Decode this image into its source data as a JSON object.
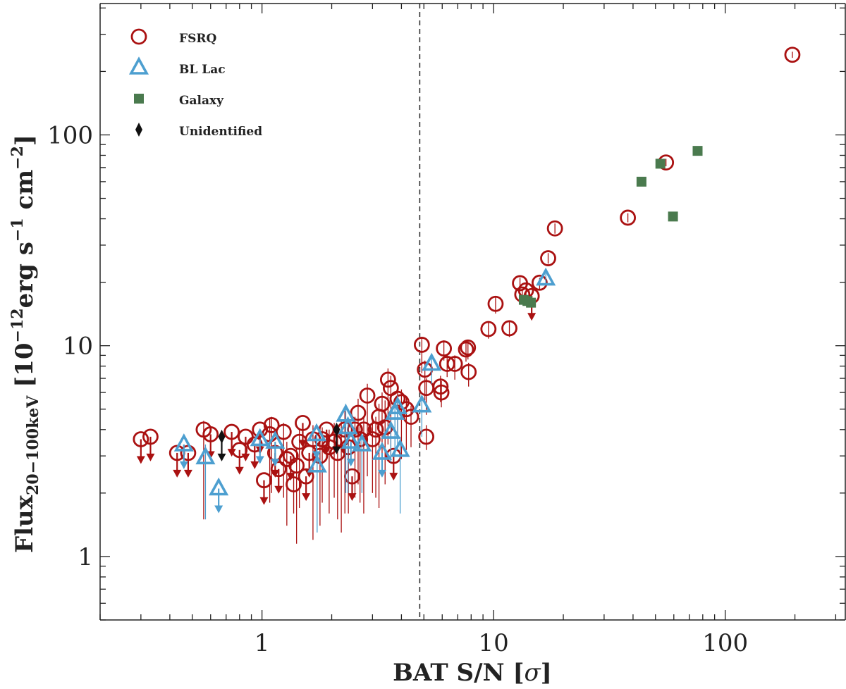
{
  "chart_data": {
    "type": "scatter",
    "xscale": "log",
    "yscale": "log",
    "xlim": [
      0.2,
      330
    ],
    "ylim": [
      0.5,
      420
    ],
    "x_ticks": [
      {
        "value": 1,
        "label": "1"
      },
      {
        "value": 10,
        "label": "10"
      },
      {
        "value": 100,
        "label": "100"
      }
    ],
    "y_ticks": [
      {
        "value": 1,
        "label": "1"
      },
      {
        "value": 10,
        "label": "10"
      },
      {
        "value": 100,
        "label": "100"
      }
    ],
    "xlabel": {
      "main": "BAT S/N [",
      "sym": "σ",
      "close": "]"
    },
    "ylabel": {
      "main": "Flux",
      "sub": "20−100keV",
      "unit_open": " [10",
      "exp1": "−12",
      "unit_mid": "erg s",
      "exp2": "−1",
      "unit_mid2": " cm",
      "exp3": "−2",
      "unit_close": "]"
    },
    "threshold_line": {
      "x": 4.8,
      "style": "dashed"
    },
    "legend_position": "top-left",
    "colors": {
      "fsrq": "#aa1111",
      "bllac": "#4d9fd0",
      "galaxy": "#4a7a4e",
      "unid": "#111111",
      "axis": "#222222"
    },
    "series": [
      {
        "name": "FSRQ",
        "marker": "circle",
        "color": "#aa1111",
        "points": [
          {
            "x": 0.3,
            "y": 3.6,
            "ul": true
          },
          {
            "x": 0.33,
            "y": 3.7,
            "ul": true
          },
          {
            "x": 0.43,
            "y": 3.1,
            "ul": true
          },
          {
            "x": 0.48,
            "y": 3.1,
            "ul": true
          },
          {
            "x": 0.56,
            "y": 4.0,
            "lo": 1.5,
            "hi": 4.4
          },
          {
            "x": 0.6,
            "y": 3.8,
            "ul": true
          },
          {
            "x": 0.74,
            "y": 3.9,
            "ul": true
          },
          {
            "x": 0.8,
            "y": 3.2,
            "ul": true
          },
          {
            "x": 0.85,
            "y": 3.7,
            "ul": true
          },
          {
            "x": 0.93,
            "y": 3.4,
            "ul": true
          },
          {
            "x": 0.98,
            "y": 4.0,
            "ul": true
          },
          {
            "x": 1.02,
            "y": 2.3,
            "ul": true
          },
          {
            "x": 1.08,
            "y": 3.8,
            "lo": 1.8,
            "hi": 4.5
          },
          {
            "x": 1.1,
            "y": 4.2,
            "lo": 2.0,
            "hi": 4.6
          },
          {
            "x": 1.14,
            "y": 3.1,
            "ul": true
          },
          {
            "x": 1.18,
            "y": 2.6,
            "ul": true
          },
          {
            "x": 1.24,
            "y": 3.9,
            "lo": 1.9,
            "hi": 4.3
          },
          {
            "x": 1.28,
            "y": 2.9,
            "lo": 1.4,
            "hi": 3.5
          },
          {
            "x": 1.33,
            "y": 3.0,
            "ul": true
          },
          {
            "x": 1.37,
            "y": 2.2,
            "lo": 1.6,
            "hi": 2.5
          },
          {
            "x": 1.41,
            "y": 2.7,
            "lo": 1.15,
            "hi": 3.3
          },
          {
            "x": 1.45,
            "y": 3.5,
            "lo": 1.7,
            "hi": 4.0
          },
          {
            "x": 1.5,
            "y": 4.3,
            "ul": true
          },
          {
            "x": 1.55,
            "y": 2.4,
            "ul": true
          },
          {
            "x": 1.6,
            "y": 3.1,
            "ul": true
          },
          {
            "x": 1.66,
            "y": 3.6,
            "lo": 1.2,
            "hi": 4.2
          },
          {
            "x": 1.78,
            "y": 3.0,
            "lo": 1.4,
            "hi": 3.5
          },
          {
            "x": 1.82,
            "y": 3.6,
            "lo": 1.8,
            "hi": 4.1
          },
          {
            "x": 1.9,
            "y": 4.0,
            "ul": true
          },
          {
            "x": 1.95,
            "y": 3.3,
            "lo": 1.6,
            "hi": 4.0
          },
          {
            "x": 2.05,
            "y": 3.5,
            "lo": 1.9,
            "hi": 4.3
          },
          {
            "x": 2.12,
            "y": 3.1,
            "lo": 1.5,
            "hi": 3.8
          },
          {
            "x": 2.2,
            "y": 3.6,
            "lo": 1.3,
            "hi": 4.4
          },
          {
            "x": 2.28,
            "y": 4.0,
            "lo": 1.6,
            "hi": 4.9
          },
          {
            "x": 2.36,
            "y": 3.3,
            "lo": 1.6,
            "hi": 4.1
          },
          {
            "x": 2.45,
            "y": 2.4,
            "ul": true
          },
          {
            "x": 2.52,
            "y": 4.0,
            "lo": 1.9,
            "hi": 4.6
          },
          {
            "x": 2.6,
            "y": 4.8,
            "lo": 2.2,
            "hi": 5.6
          },
          {
            "x": 2.65,
            "y": 3.6,
            "lo": 1.8,
            "hi": 4.3
          },
          {
            "x": 2.75,
            "y": 4.0,
            "lo": 1.6,
            "hi": 4.6
          },
          {
            "x": 2.85,
            "y": 5.8,
            "lo": 2.4,
            "hi": 6.6
          },
          {
            "x": 3.0,
            "y": 3.6,
            "lo": 2.0,
            "hi": 4.4
          },
          {
            "x": 3.1,
            "y": 4.0,
            "lo": 1.9,
            "hi": 4.6
          },
          {
            "x": 3.2,
            "y": 4.6,
            "lo": 1.7,
            "hi": 5.3
          },
          {
            "x": 3.3,
            "y": 5.3,
            "lo": 2.8,
            "hi": 6.0
          },
          {
            "x": 3.4,
            "y": 4.1,
            "lo": 2.2,
            "hi": 5.5
          },
          {
            "x": 3.5,
            "y": 6.9,
            "lo": 3.4,
            "hi": 7.8
          },
          {
            "x": 3.6,
            "y": 6.3,
            "lo": 2.8,
            "hi": 7.2
          },
          {
            "x": 3.7,
            "y": 3.0,
            "ul": true
          },
          {
            "x": 3.85,
            "y": 5.6,
            "lo": 3.6,
            "hi": 6.4
          },
          {
            "x": 4.0,
            "y": 5.4,
            "lo": 2.9,
            "hi": 6.2
          },
          {
            "x": 4.2,
            "y": 5.0,
            "lo": 3.2,
            "hi": 5.7
          },
          {
            "x": 4.4,
            "y": 4.6,
            "lo": 3.3,
            "hi": 5.2
          },
          {
            "x": 4.9,
            "y": 10.1,
            "lo": 7.4,
            "hi": 11.0
          },
          {
            "x": 5.05,
            "y": 7.7,
            "lo": 5.5,
            "hi": 8.5
          },
          {
            "x": 5.12,
            "y": 6.3,
            "lo": 4.7,
            "hi": 7.0
          },
          {
            "x": 5.12,
            "y": 3.7,
            "lo": 3.2,
            "hi": 4.2
          },
          {
            "x": 5.9,
            "y": 6.4,
            "lo": 5.4,
            "hi": 7.2
          },
          {
            "x": 5.95,
            "y": 6.0,
            "lo": 5.1,
            "hi": 6.8
          },
          {
            "x": 6.1,
            "y": 9.7,
            "lo": 8.5,
            "hi": 10.6
          },
          {
            "x": 6.3,
            "y": 8.2,
            "lo": 7.1,
            "hi": 9.1
          },
          {
            "x": 6.8,
            "y": 8.2,
            "lo": 6.9,
            "hi": 9.0
          },
          {
            "x": 7.6,
            "y": 9.6,
            "lo": 8.4,
            "hi": 10.3
          },
          {
            "x": 7.75,
            "y": 9.8,
            "lo": 8.6,
            "hi": 10.6
          },
          {
            "x": 7.8,
            "y": 7.5,
            "lo": 6.4,
            "hi": 8.3
          },
          {
            "x": 9.5,
            "y": 12.0,
            "lo": 10.8,
            "hi": 13.0
          },
          {
            "x": 10.2,
            "y": 15.8,
            "lo": 14.2,
            "hi": 17.0
          },
          {
            "x": 11.7,
            "y": 12.1,
            "lo": 11.0,
            "hi": 13.2
          },
          {
            "x": 13.0,
            "y": 19.8,
            "lo": 18.3,
            "hi": 21.0
          },
          {
            "x": 13.3,
            "y": 17.5,
            "lo": 16.2,
            "hi": 18.6
          },
          {
            "x": 13.8,
            "y": 18.3,
            "lo": 17.0,
            "hi": 19.5
          },
          {
            "x": 14.6,
            "y": 17.2,
            "ul": true
          },
          {
            "x": 15.8,
            "y": 19.9,
            "lo": 18.5,
            "hi": 21.0
          },
          {
            "x": 17.2,
            "y": 26.0,
            "lo": 24.5,
            "hi": 27.5
          },
          {
            "x": 18.4,
            "y": 36.0,
            "lo": 34.0,
            "hi": 38.0
          },
          {
            "x": 38.0,
            "y": 40.5,
            "lo": 38.5,
            "hi": 42.5
          },
          {
            "x": 55.5,
            "y": 74.0,
            "lo": 71.0,
            "hi": 77.0
          },
          {
            "x": 195.0,
            "y": 240.0,
            "lo": 232.0,
            "hi": 248.0
          }
        ]
      },
      {
        "name": "BL Lac",
        "marker": "triangle",
        "color": "#4d9fd0",
        "points": [
          {
            "x": 0.46,
            "y": 3.4,
            "ul": true
          },
          {
            "x": 0.57,
            "y": 2.95,
            "lo": 1.5,
            "hi": 3.4
          },
          {
            "x": 0.65,
            "y": 2.1,
            "ul": true
          },
          {
            "x": 0.98,
            "y": 3.6,
            "ul": true
          },
          {
            "x": 1.14,
            "y": 3.5,
            "ul": true
          },
          {
            "x": 1.72,
            "y": 3.8,
            "ul": true
          },
          {
            "x": 1.73,
            "y": 2.7,
            "lo": 1.3,
            "hi": 3.1
          },
          {
            "x": 2.3,
            "y": 4.7,
            "lo": 2.0,
            "hi": 5.3
          },
          {
            "x": 2.35,
            "y": 4.1,
            "lo": 2.0,
            "hi": 4.6
          },
          {
            "x": 2.42,
            "y": 3.5,
            "ul": true
          },
          {
            "x": 2.7,
            "y": 3.4,
            "lo": 2.0,
            "hi": 3.8
          },
          {
            "x": 3.3,
            "y": 3.1,
            "ul": true
          },
          {
            "x": 3.6,
            "y": 3.9,
            "lo": 2.8,
            "hi": 4.4
          },
          {
            "x": 3.75,
            "y": 4.8,
            "lo": 3.0,
            "hi": 5.4
          },
          {
            "x": 3.85,
            "y": 5.1,
            "lo": 3.2,
            "hi": 5.8
          },
          {
            "x": 3.95,
            "y": 3.2,
            "lo": 1.6,
            "hi": 3.7
          },
          {
            "x": 4.9,
            "y": 5.2,
            "lo": 3.7,
            "hi": 5.8
          },
          {
            "x": 5.4,
            "y": 8.2,
            "lo": 6.6,
            "hi": 9.0
          },
          {
            "x": 16.8,
            "y": 20.8,
            "lo": 19.6,
            "hi": 22.0
          }
        ]
      },
      {
        "name": "Galaxy",
        "marker": "square",
        "color": "#4a7a4e",
        "points": [
          {
            "x": 13.5,
            "y": 16.5
          },
          {
            "x": 14.0,
            "y": 16.3
          },
          {
            "x": 14.5,
            "y": 16.0
          },
          {
            "x": 43.5,
            "y": 60.0
          },
          {
            "x": 52.5,
            "y": 73.0
          },
          {
            "x": 59.5,
            "y": 41.0
          },
          {
            "x": 76.0,
            "y": 84.0
          }
        ]
      },
      {
        "name": "Unidentified",
        "marker": "diamond",
        "color": "#111111",
        "points": [
          {
            "x": 0.67,
            "y": 3.7,
            "ul": true
          },
          {
            "x": 2.1,
            "y": 4.0,
            "ul": true
          }
        ]
      }
    ]
  }
}
